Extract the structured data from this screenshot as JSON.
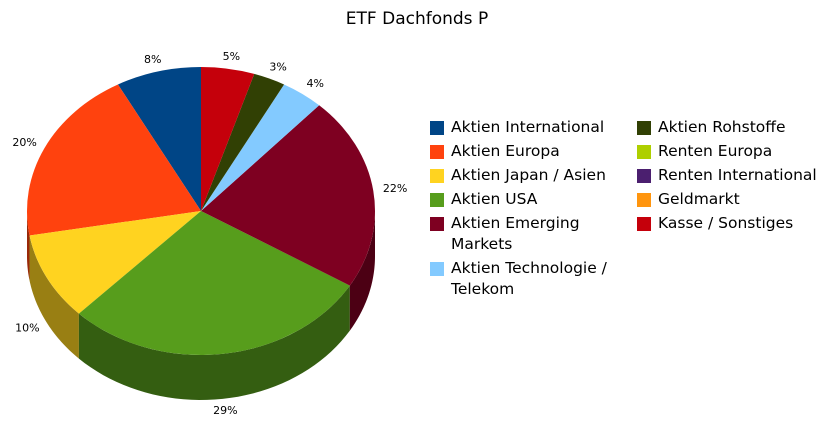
{
  "chart_data": {
    "type": "pie",
    "title": "ETF Dachfonds P",
    "series": [
      {
        "name": "Aktien International",
        "color": "#004586",
        "values": [
          8
        ],
        "value_labels": [
          "8%"
        ]
      },
      {
        "name": "Aktien Europa",
        "color": "#ff420e",
        "values": [
          20
        ],
        "value_labels": [
          "20%"
        ]
      },
      {
        "name": "Aktien Japan / Asien",
        "color": "#ffd320",
        "values": [
          10
        ],
        "value_labels": [
          "10%"
        ]
      },
      {
        "name": "Aktien USA",
        "color": "#579d1c",
        "values": [
          29
        ],
        "value_labels": [
          "29%"
        ]
      },
      {
        "name": "Aktien Emerging Markets",
        "color": "#7e0021",
        "values": [
          22
        ],
        "value_labels": [
          "22%"
        ]
      },
      {
        "name": "Aktien Technologie / Telekom",
        "color": "#83caff",
        "values": [
          4
        ],
        "value_labels": [
          "4%"
        ]
      },
      {
        "name": "Aktien Rohstoffe",
        "color": "#314004",
        "values": [
          3
        ],
        "value_labels": [
          "3%"
        ]
      },
      {
        "name": "Renten Europa",
        "color": "#aecf00",
        "values": [
          0
        ],
        "value_labels": [
          null
        ]
      },
      {
        "name": "Renten International",
        "color": "#4b1f6f",
        "values": [
          0
        ],
        "value_labels": [
          null
        ]
      },
      {
        "name": "Geldmarkt",
        "color": "#ff950e",
        "values": [
          0
        ],
        "value_labels": [
          null
        ]
      },
      {
        "name": "Kasse / Sonstiges",
        "color": "#c5000b",
        "values": [
          5
        ],
        "value_labels": [
          "5%"
        ]
      }
    ]
  }
}
